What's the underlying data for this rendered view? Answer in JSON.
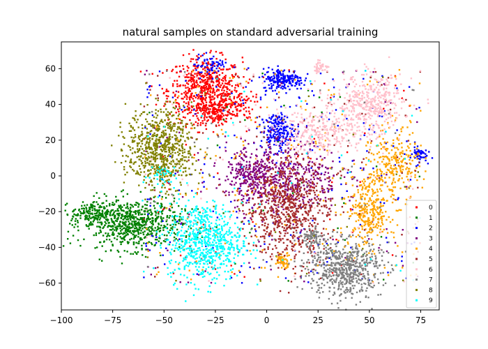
{
  "chart_data": {
    "type": "scatter",
    "title": "natural samples on standard adversarial training",
    "xlabel": "",
    "ylabel": "",
    "xlim": [
      -100,
      84
    ],
    "ylim": [
      -75,
      75
    ],
    "xticks": [
      -100,
      -75,
      -50,
      -25,
      0,
      25,
      50,
      75
    ],
    "yticks": [
      -60,
      -40,
      -20,
      0,
      20,
      40,
      60
    ],
    "xtick_labels": [
      "−100",
      "−75",
      "−50",
      "−25",
      "0",
      "25",
      "50",
      "75"
    ],
    "ytick_labels": [
      "−60",
      "−40",
      "−20",
      "0",
      "20",
      "40",
      "60"
    ],
    "grid": false,
    "legend_position": "lower-right",
    "series": [
      {
        "name": "0",
        "color": "#ff0000",
        "clusters": [
          [
            -30,
            48,
            9,
            9,
            600
          ],
          [
            -25,
            36,
            5,
            4,
            150
          ],
          [
            -14,
            40,
            4,
            4,
            60
          ]
        ],
        "scatter": 70
      },
      {
        "name": "1",
        "color": "#008000",
        "clusters": [
          [
            -65,
            -27,
            12,
            7,
            700
          ],
          [
            -85,
            -21,
            5,
            3,
            150
          ]
        ],
        "scatter": 50
      },
      {
        "name": "2",
        "color": "#0000ff",
        "clusters": [
          [
            8,
            54,
            5,
            3,
            200
          ],
          [
            5,
            25,
            4,
            5,
            200
          ],
          [
            -27,
            62,
            4,
            3,
            60
          ],
          [
            74,
            12,
            2,
            2,
            50
          ]
        ],
        "scatter": 250
      },
      {
        "name": "3",
        "color": "#800080",
        "clusters": [
          [
            8,
            0,
            14,
            10,
            500
          ],
          [
            -8,
            0,
            6,
            6,
            150
          ]
        ],
        "scatter": 100
      },
      {
        "name": "4",
        "color": "#ffa500",
        "clusters": [
          [
            50,
            -20,
            5,
            10,
            300
          ],
          [
            62,
            5,
            6,
            10,
            250
          ],
          [
            8,
            -47,
            2,
            2,
            60
          ]
        ],
        "scatter": 200
      },
      {
        "name": "5",
        "color": "#a52a2a",
        "clusters": [
          [
            10,
            -18,
            10,
            14,
            700
          ]
        ],
        "scatter": 150
      },
      {
        "name": "6",
        "color": "#ffc0cb",
        "clusters": [
          [
            50,
            40,
            8,
            8,
            400
          ],
          [
            28,
            25,
            12,
            6,
            300
          ],
          [
            26,
            61,
            2,
            1.5,
            40
          ]
        ],
        "scatter": 100
      },
      {
        "name": "7",
        "color": "#808080",
        "clusters": [
          [
            38,
            -52,
            9,
            8,
            600
          ],
          [
            22,
            -35,
            3,
            3,
            80
          ]
        ],
        "scatter": 60
      },
      {
        "name": "8",
        "color": "#808000",
        "clusters": [
          [
            -52,
            15,
            8,
            11,
            700
          ]
        ],
        "scatter": 40
      },
      {
        "name": "9",
        "color": "#00ffff",
        "clusters": [
          [
            -30,
            -37,
            9,
            11,
            650
          ],
          [
            -52,
            0,
            4,
            4,
            40
          ]
        ],
        "scatter": 40
      }
    ]
  }
}
